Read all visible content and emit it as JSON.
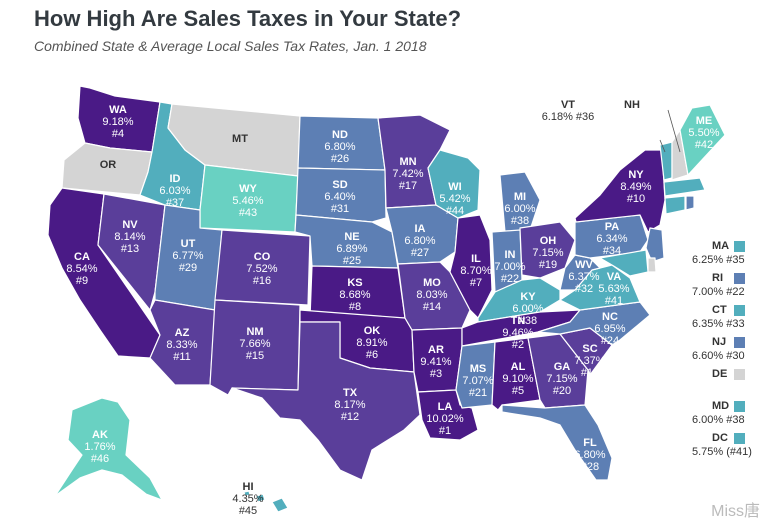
{
  "title": "How High Are Sales Taxes in Your State?",
  "subtitle": "Combined State & Average Local Sales Tax Rates, Jan. 1 2018",
  "colors": {
    "darkest": "#4a1a86",
    "dark": "#5a3e9a",
    "mid": "#5d7fb4",
    "light": "#52aebd",
    "lightest": "#69d1c2",
    "none": "#d4d4d4"
  },
  "states": [
    {
      "abbr": "WA",
      "rate": "9.18%",
      "rank": "#4"
    },
    {
      "abbr": "OR",
      "rate": "",
      "rank": ""
    },
    {
      "abbr": "CA",
      "rate": "8.54%",
      "rank": "#9"
    },
    {
      "abbr": "NV",
      "rate": "8.14%",
      "rank": "#13"
    },
    {
      "abbr": "ID",
      "rate": "6.03%",
      "rank": "#37"
    },
    {
      "abbr": "MT",
      "rate": "",
      "rank": ""
    },
    {
      "abbr": "WY",
      "rate": "5.46%",
      "rank": "#43"
    },
    {
      "abbr": "UT",
      "rate": "6.77%",
      "rank": "#29"
    },
    {
      "abbr": "AZ",
      "rate": "8.33%",
      "rank": "#11"
    },
    {
      "abbr": "CO",
      "rate": "7.52%",
      "rank": "#16"
    },
    {
      "abbr": "NM",
      "rate": "7.66%",
      "rank": "#15"
    },
    {
      "abbr": "ND",
      "rate": "6.80%",
      "rank": "#26"
    },
    {
      "abbr": "SD",
      "rate": "6.40%",
      "rank": "#31"
    },
    {
      "abbr": "NE",
      "rate": "6.89%",
      "rank": "#25"
    },
    {
      "abbr": "KS",
      "rate": "8.68%",
      "rank": "#8"
    },
    {
      "abbr": "OK",
      "rate": "8.91%",
      "rank": "#6"
    },
    {
      "abbr": "TX",
      "rate": "8.17%",
      "rank": "#12"
    },
    {
      "abbr": "MN",
      "rate": "7.42%",
      "rank": "#17"
    },
    {
      "abbr": "IA",
      "rate": "6.80%",
      "rank": "#27"
    },
    {
      "abbr": "MO",
      "rate": "8.03%",
      "rank": "#14"
    },
    {
      "abbr": "AR",
      "rate": "9.41%",
      "rank": "#3"
    },
    {
      "abbr": "LA",
      "rate": "10.02%",
      "rank": "#1"
    },
    {
      "abbr": "WI",
      "rate": "5.42%",
      "rank": "#44"
    },
    {
      "abbr": "IL",
      "rate": "8.70%",
      "rank": "#7"
    },
    {
      "abbr": "MI",
      "rate": "6.00%",
      "rank": "#38"
    },
    {
      "abbr": "IN",
      "rate": "7.00%",
      "rank": "#22"
    },
    {
      "abbr": "OH",
      "rate": "7.15%",
      "rank": "#19"
    },
    {
      "abbr": "KY",
      "rate": "6.00%",
      "rank": "#38"
    },
    {
      "abbr": "TN",
      "rate": "9.46%",
      "rank": "#2"
    },
    {
      "abbr": "MS",
      "rate": "7.07%",
      "rank": "#21"
    },
    {
      "abbr": "AL",
      "rate": "9.10%",
      "rank": "#5"
    },
    {
      "abbr": "GA",
      "rate": "7.15%",
      "rank": "#20"
    },
    {
      "abbr": "FL",
      "rate": "6.80%",
      "rank": "#28"
    },
    {
      "abbr": "SC",
      "rate": "7.37%",
      "rank": "#18"
    },
    {
      "abbr": "NC",
      "rate": "6.95%",
      "rank": "#24"
    },
    {
      "abbr": "VA",
      "rate": "5.63%",
      "rank": "#41"
    },
    {
      "abbr": "WV",
      "rate": "6.37%",
      "rank": "#32"
    },
    {
      "abbr": "PA",
      "rate": "6.34%",
      "rank": "#34"
    },
    {
      "abbr": "NY",
      "rate": "8.49%",
      "rank": "#10"
    },
    {
      "abbr": "ME",
      "rate": "5.50%",
      "rank": "#42"
    },
    {
      "abbr": "VT",
      "rate": "6.18%",
      "rank": "#36"
    },
    {
      "abbr": "NH",
      "rate": "",
      "rank": ""
    },
    {
      "abbr": "AK",
      "rate": "1.76%",
      "rank": "#46"
    },
    {
      "abbr": "HI",
      "rate": "4.35%",
      "rank": "#45"
    }
  ],
  "legend": [
    {
      "abbr": "MA",
      "value": "6.25% #35",
      "color": "#52aebd"
    },
    {
      "abbr": "RI",
      "value": "7.00% #22",
      "color": "#5d7fb4"
    },
    {
      "abbr": "CT",
      "value": "6.35% #33",
      "color": "#52aebd"
    },
    {
      "abbr": "NJ",
      "value": "6.60% #30",
      "color": "#5d7fb4"
    },
    {
      "abbr": "DE",
      "value": "",
      "color": "#d4d4d4"
    },
    {
      "abbr": "MD",
      "value": "6.00% #38",
      "color": "#52aebd"
    },
    {
      "abbr": "DC",
      "value": "5.75% (#41)",
      "color": "#52aebd"
    }
  ],
  "watermark": "Miss唐"
}
